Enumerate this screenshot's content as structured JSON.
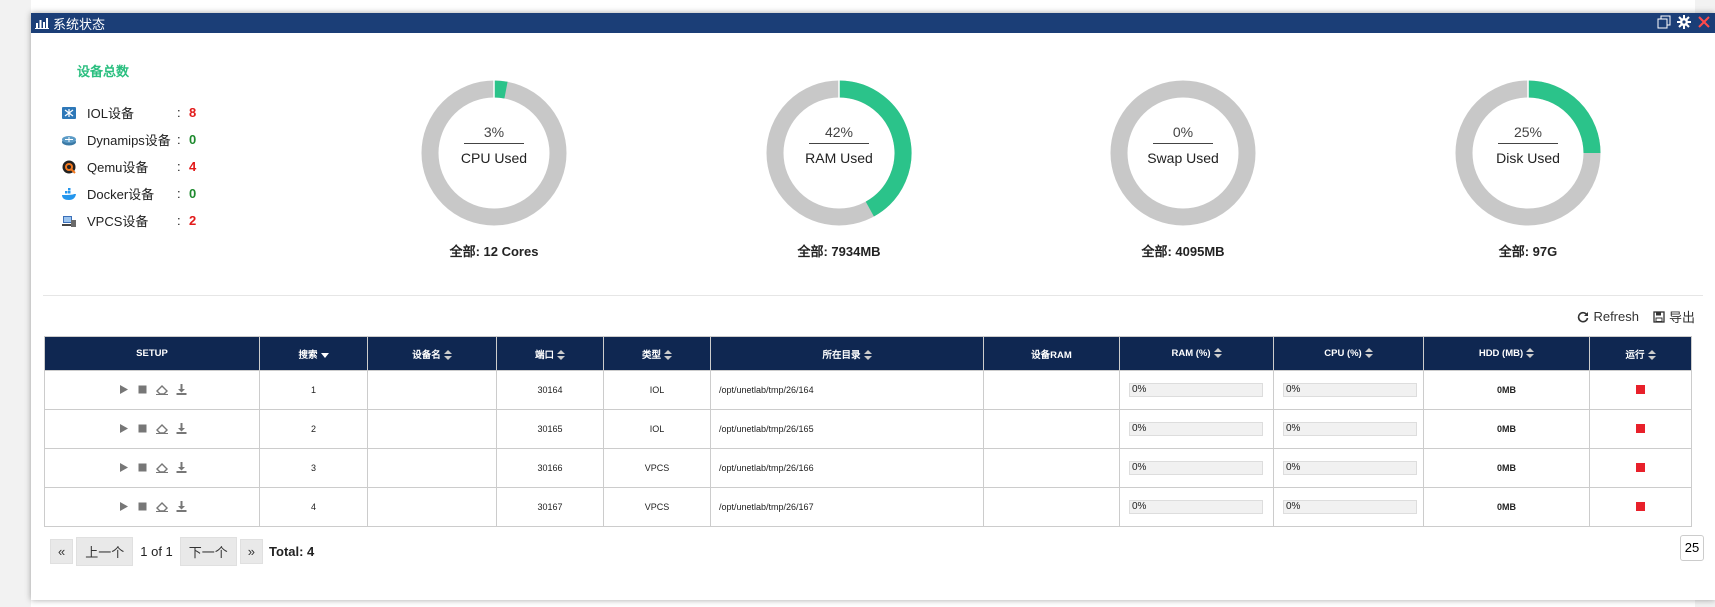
{
  "window": {
    "title": "系统状态"
  },
  "summary": {
    "title": "设备总数",
    "devices": [
      {
        "name": "IOL设备",
        "value": "8",
        "color": "#e21a1a",
        "icon": "iol-switch-icon"
      },
      {
        "name": "Dynamips设备",
        "value": "0",
        "color": "#1e8a2e",
        "icon": "dynamips-router-icon"
      },
      {
        "name": "Qemu设备",
        "value": "4",
        "color": "#e21a1a",
        "icon": "qemu-icon"
      },
      {
        "name": "Docker设备",
        "value": "0",
        "color": "#1e8a2e",
        "icon": "docker-whale-icon"
      },
      {
        "name": "VPCS设备",
        "value": "2",
        "color": "#e21a1a",
        "icon": "vpcs-pc-icon"
      }
    ],
    "colon": ":"
  },
  "gauges": [
    {
      "pct": "3%",
      "value": 0.03,
      "label": "CPU Used",
      "total": "全部: 12 Cores"
    },
    {
      "pct": "42%",
      "value": 0.42,
      "label": "RAM Used",
      "total": "全部: 7934MB"
    },
    {
      "pct": "0%",
      "value": 0.0,
      "label": "Swap Used",
      "total": "全部: 4095MB"
    },
    {
      "pct": "25%",
      "value": 0.25,
      "label": "Disk Used",
      "total": "全部: 97G"
    }
  ],
  "colors": {
    "accent": "#2bc38a",
    "track": "#c8c8c8",
    "header": "#0f2751",
    "titlebar": "#1b3e77",
    "stopped": "#e8202a"
  },
  "actions": {
    "refresh": "Refresh",
    "export": "导出"
  },
  "table": {
    "headers": [
      "SETUP",
      "搜索",
      "设备名",
      "端口",
      "类型",
      "所在目录",
      "设备RAM",
      "RAM (%)",
      "CPU (%)",
      "HDD (MB)",
      "运行"
    ],
    "rows": [
      {
        "id": "1",
        "name": "",
        "port": "30164",
        "type": "IOL",
        "dir": "/opt/unetlab/tmp/26/164",
        "ram_dev": "",
        "ram": "0%",
        "cpu": "0%",
        "hdd": "0MB",
        "running": false
      },
      {
        "id": "2",
        "name": "",
        "port": "30165",
        "type": "IOL",
        "dir": "/opt/unetlab/tmp/26/165",
        "ram_dev": "",
        "ram": "0%",
        "cpu": "0%",
        "hdd": "0MB",
        "running": false
      },
      {
        "id": "3",
        "name": "",
        "port": "30166",
        "type": "VPCS",
        "dir": "/opt/unetlab/tmp/26/166",
        "ram_dev": "",
        "ram": "0%",
        "cpu": "0%",
        "hdd": "0MB",
        "running": false
      },
      {
        "id": "4",
        "name": "",
        "port": "30167",
        "type": "VPCS",
        "dir": "/opt/unetlab/tmp/26/167",
        "ram_dev": "",
        "ram": "0%",
        "cpu": "0%",
        "hdd": "0MB",
        "running": false
      }
    ]
  },
  "pager": {
    "first": "«",
    "prev": "上一个",
    "info": "1 of 1",
    "next": "下一个",
    "last": "»",
    "total": "Total: 4",
    "page_size": "25"
  }
}
